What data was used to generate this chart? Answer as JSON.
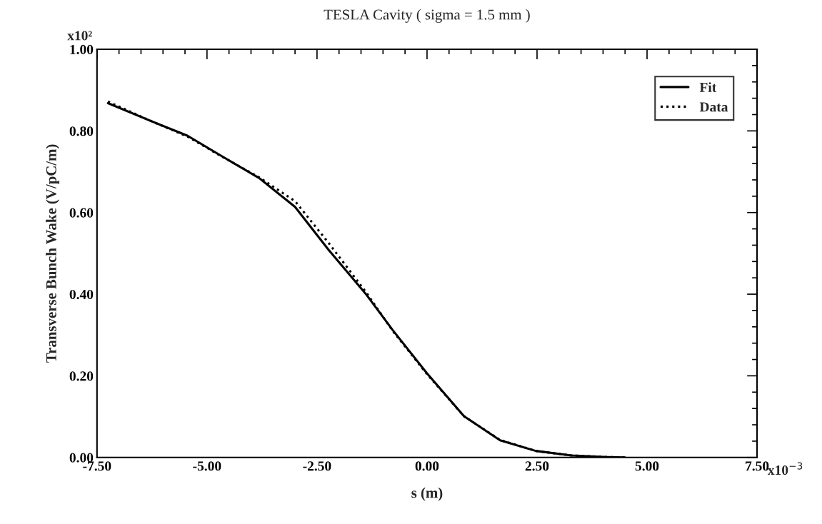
{
  "chart_data": {
    "type": "line",
    "title": "TESLA Cavity ( sigma = 1.5 mm )",
    "xlabel": "s (m)",
    "ylabel": "Transverse Bunch Wake (V/pC/m)",
    "annotations": [
      "x10²",
      "x10$^{−3}$"
    ],
    "xlim": [
      -7.5,
      7.5
    ],
    "xticks": [
      {
        "value": -7.5,
        "label": "-7.50"
      },
      {
        "value": -7.0,
        "label": null
      },
      {
        "value": -6.5,
        "label": null
      },
      {
        "value": -6.0,
        "label": null
      },
      {
        "value": -5.5,
        "label": null
      },
      {
        "value": -5.0,
        "label": "-5.00"
      },
      {
        "value": -4.5,
        "label": null
      },
      {
        "value": -4.0,
        "label": null
      },
      {
        "value": -3.5,
        "label": null
      },
      {
        "value": -3.0,
        "label": null
      },
      {
        "value": -2.5,
        "label": "-2.50"
      },
      {
        "value": -2.0,
        "label": null
      },
      {
        "value": -1.5,
        "label": null
      },
      {
        "value": -1.0,
        "label": null
      },
      {
        "value": -0.5,
        "label": null
      },
      {
        "value": 0,
        "label": "0.00"
      },
      {
        "value": 0.5,
        "label": null
      },
      {
        "value": 1.0,
        "label": null
      },
      {
        "value": 1.5,
        "label": null
      },
      {
        "value": 2.0,
        "label": null
      },
      {
        "value": 2.5,
        "label": "2.50"
      },
      {
        "value": 3.0,
        "label": null
      },
      {
        "value": 3.5,
        "label": null
      },
      {
        "value": 4.0,
        "label": null
      },
      {
        "value": 4.5,
        "label": null
      },
      {
        "value": 5.0,
        "label": "5.00"
      },
      {
        "value": 5.5,
        "label": null
      },
      {
        "value": 6.0,
        "label": null
      },
      {
        "value": 6.5,
        "label": null
      },
      {
        "value": 7.0,
        "label": null
      },
      {
        "value": 7.5,
        "label": "7.50"
      }
    ],
    "ylim": [
      0,
      1.0
    ],
    "yticks": [
      {
        "value": 0,
        "label": "0.00"
      },
      {
        "value": 0.04,
        "label": null
      },
      {
        "value": 0.08,
        "label": null
      },
      {
        "value": 0.12,
        "label": null
      },
      {
        "value": 0.16,
        "label": null
      },
      {
        "value": 0.2,
        "label": "0.20"
      },
      {
        "value": 0.24,
        "label": null
      },
      {
        "value": 0.28,
        "label": null
      },
      {
        "value": 0.32,
        "label": null
      },
      {
        "value": 0.36,
        "label": null
      },
      {
        "value": 0.4,
        "label": "0.40"
      },
      {
        "value": 0.44,
        "label": null
      },
      {
        "value": 0.48,
        "label": null
      },
      {
        "value": 0.52,
        "label": null
      },
      {
        "value": 0.56,
        "label": null
      },
      {
        "value": 0.6,
        "label": "0.60"
      },
      {
        "value": 0.64,
        "label": null
      },
      {
        "value": 0.68,
        "label": null
      },
      {
        "value": 0.72,
        "label": null
      },
      {
        "value": 0.76,
        "label": null
      },
      {
        "value": 0.8,
        "label": "0.80"
      },
      {
        "value": 0.84,
        "label": null
      },
      {
        "value": 0.88,
        "label": null
      },
      {
        "value": 0.92,
        "label": null
      },
      {
        "value": 0.96,
        "label": null
      },
      {
        "value": 1.0,
        "label": "1.00"
      }
    ],
    "grid": false,
    "legend": "top right",
    "series": [
      {
        "name": "Fit",
        "color": "#000000",
        "line_style": "solid",
        "x": [
          -7.25,
          -6.25,
          -5.44,
          -4.63,
          -3.81,
          -3.0,
          -2.24,
          -1.38,
          -0.78,
          0,
          0.84,
          1.66,
          2.47,
          3.28,
          4.1,
          4.5
        ],
        "values": [
          0.868,
          0.823,
          0.788,
          0.736,
          0.684,
          0.614,
          0.509,
          0.399,
          0.312,
          0.206,
          0.101,
          0.042,
          0.016,
          0.005,
          0.001,
          0.0
        ]
      },
      {
        "name": "Data",
        "color": "#000000",
        "line_style": "dotted",
        "x": [
          -7.25,
          -6.25,
          -5.44,
          -4.63,
          -3.81,
          -3.0,
          -2.24,
          -1.38,
          -0.78,
          0,
          0.84,
          1.66,
          2.47,
          3.28,
          4.1,
          4.5
        ],
        "values": [
          0.872,
          0.823,
          0.786,
          0.735,
          0.686,
          0.628,
          0.526,
          0.404,
          0.31,
          0.204,
          0.101,
          0.043,
          0.016,
          0.005,
          0.001,
          0.0
        ]
      }
    ]
  }
}
